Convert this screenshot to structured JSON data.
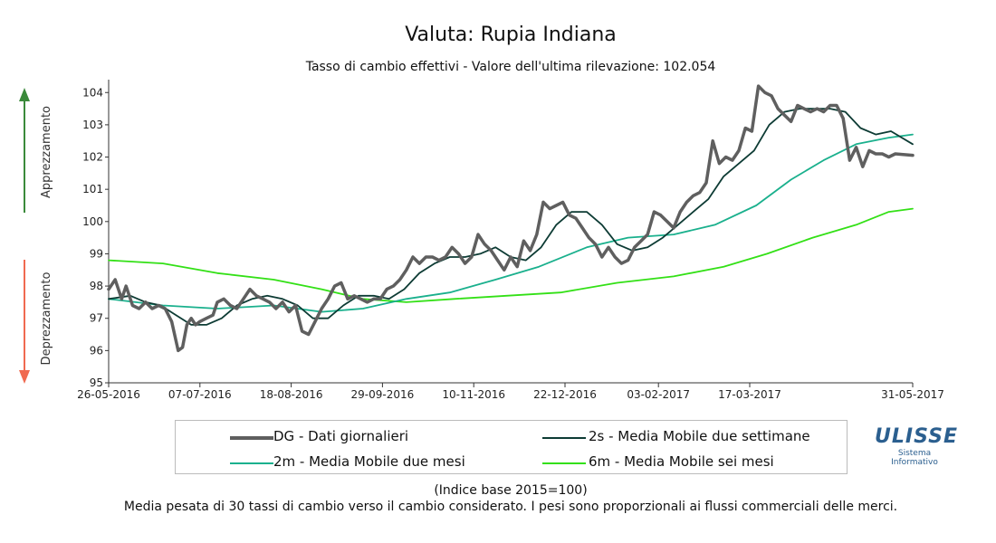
{
  "chart_data": {
    "type": "line",
    "title": "Valuta: Rupia Indiana",
    "subtitle_prefix": "Tasso di cambio effettivi - Valore dell'ultima rilevazione:",
    "last_value": "102.054",
    "ylim": [
      95,
      104.4
    ],
    "yticks": [
      "95",
      "96",
      "97",
      "98",
      "99",
      "100",
      "101",
      "102",
      "103",
      "104"
    ],
    "x_range": [
      "2016-05-26",
      "2017-05-31"
    ],
    "xticks": [
      {
        "date": "2016-05-26",
        "label": "26-05-2016"
      },
      {
        "date": "2016-07-07",
        "label": "07-07-2016"
      },
      {
        "date": "2016-08-18",
        "label": "18-08-2016"
      },
      {
        "date": "2016-09-29",
        "label": "29-09-2016"
      },
      {
        "date": "2016-11-10",
        "label": "10-11-2016"
      },
      {
        "date": "2016-12-22",
        "label": "22-12-2016"
      },
      {
        "date": "2017-02-03",
        "label": "03-02-2017"
      },
      {
        "date": "2017-03-17",
        "label": "17-03-2017"
      },
      {
        "date": "2017-05-31",
        "label": "31-05-2017"
      }
    ],
    "left_axis_up": "Apprezzamento",
    "left_axis_down": "Deprezzamento",
    "series": [
      {
        "name": "DG - Dati giornalieri",
        "color": "#5f5f5f",
        "width": 3.5,
        "points": [
          [
            "2016-05-26",
            97.9
          ],
          [
            "2016-05-29",
            98.2
          ],
          [
            "2016-06-01",
            97.6
          ],
          [
            "2016-06-03",
            98.0
          ],
          [
            "2016-06-06",
            97.4
          ],
          [
            "2016-06-09",
            97.3
          ],
          [
            "2016-06-12",
            97.5
          ],
          [
            "2016-06-15",
            97.3
          ],
          [
            "2016-06-18",
            97.4
          ],
          [
            "2016-06-21",
            97.3
          ],
          [
            "2016-06-24",
            96.9
          ],
          [
            "2016-06-27",
            96.0
          ],
          [
            "2016-06-29",
            96.1
          ],
          [
            "2016-07-01",
            96.8
          ],
          [
            "2016-07-03",
            97.0
          ],
          [
            "2016-07-05",
            96.8
          ],
          [
            "2016-07-07",
            96.9
          ],
          [
            "2016-07-10",
            97.0
          ],
          [
            "2016-07-13",
            97.1
          ],
          [
            "2016-07-15",
            97.5
          ],
          [
            "2016-07-18",
            97.6
          ],
          [
            "2016-07-21",
            97.4
          ],
          [
            "2016-07-24",
            97.3
          ],
          [
            "2016-07-27",
            97.6
          ],
          [
            "2016-07-30",
            97.9
          ],
          [
            "2016-08-02",
            97.7
          ],
          [
            "2016-08-05",
            97.6
          ],
          [
            "2016-08-08",
            97.5
          ],
          [
            "2016-08-11",
            97.3
          ],
          [
            "2016-08-14",
            97.5
          ],
          [
            "2016-08-17",
            97.2
          ],
          [
            "2016-08-20",
            97.4
          ],
          [
            "2016-08-23",
            96.6
          ],
          [
            "2016-08-26",
            96.5
          ],
          [
            "2016-08-29",
            96.9
          ],
          [
            "2016-09-01",
            97.3
          ],
          [
            "2016-09-04",
            97.6
          ],
          [
            "2016-09-07",
            98.0
          ],
          [
            "2016-09-10",
            98.1
          ],
          [
            "2016-09-13",
            97.6
          ],
          [
            "2016-09-16",
            97.7
          ],
          [
            "2016-09-19",
            97.6
          ],
          [
            "2016-09-22",
            97.5
          ],
          [
            "2016-09-25",
            97.6
          ],
          [
            "2016-09-28",
            97.6
          ],
          [
            "2016-10-01",
            97.9
          ],
          [
            "2016-10-04",
            98.0
          ],
          [
            "2016-10-07",
            98.2
          ],
          [
            "2016-10-10",
            98.5
          ],
          [
            "2016-10-13",
            98.9
          ],
          [
            "2016-10-16",
            98.7
          ],
          [
            "2016-10-19",
            98.9
          ],
          [
            "2016-10-22",
            98.9
          ],
          [
            "2016-10-25",
            98.8
          ],
          [
            "2016-10-28",
            98.9
          ],
          [
            "2016-10-31",
            99.2
          ],
          [
            "2016-11-03",
            99.0
          ],
          [
            "2016-11-06",
            98.7
          ],
          [
            "2016-11-09",
            98.9
          ],
          [
            "2016-11-12",
            99.6
          ],
          [
            "2016-11-15",
            99.3
          ],
          [
            "2016-11-18",
            99.1
          ],
          [
            "2016-11-21",
            98.8
          ],
          [
            "2016-11-24",
            98.5
          ],
          [
            "2016-11-27",
            98.9
          ],
          [
            "2016-11-30",
            98.6
          ],
          [
            "2016-12-03",
            99.4
          ],
          [
            "2016-12-06",
            99.1
          ],
          [
            "2016-12-09",
            99.6
          ],
          [
            "2016-12-12",
            100.6
          ],
          [
            "2016-12-15",
            100.4
          ],
          [
            "2016-12-18",
            100.5
          ],
          [
            "2016-12-21",
            100.6
          ],
          [
            "2016-12-24",
            100.2
          ],
          [
            "2016-12-27",
            100.1
          ],
          [
            "2016-12-30",
            99.8
          ],
          [
            "2017-01-02",
            99.5
          ],
          [
            "2017-01-05",
            99.3
          ],
          [
            "2017-01-08",
            98.9
          ],
          [
            "2017-01-11",
            99.2
          ],
          [
            "2017-01-14",
            98.9
          ],
          [
            "2017-01-17",
            98.7
          ],
          [
            "2017-01-20",
            98.8
          ],
          [
            "2017-01-23",
            99.2
          ],
          [
            "2017-01-26",
            99.4
          ],
          [
            "2017-01-29",
            99.6
          ],
          [
            "2017-02-01",
            100.3
          ],
          [
            "2017-02-04",
            100.2
          ],
          [
            "2017-02-07",
            100.0
          ],
          [
            "2017-02-10",
            99.8
          ],
          [
            "2017-02-13",
            100.3
          ],
          [
            "2017-02-16",
            100.6
          ],
          [
            "2017-02-19",
            100.8
          ],
          [
            "2017-02-22",
            100.9
          ],
          [
            "2017-02-25",
            101.2
          ],
          [
            "2017-02-28",
            102.5
          ],
          [
            "2017-03-03",
            101.8
          ],
          [
            "2017-03-06",
            102.0
          ],
          [
            "2017-03-09",
            101.9
          ],
          [
            "2017-03-12",
            102.2
          ],
          [
            "2017-03-15",
            102.9
          ],
          [
            "2017-03-18",
            102.8
          ],
          [
            "2017-03-21",
            104.2
          ],
          [
            "2017-03-24",
            104.0
          ],
          [
            "2017-03-27",
            103.9
          ],
          [
            "2017-03-30",
            103.5
          ],
          [
            "2017-04-02",
            103.3
          ],
          [
            "2017-04-05",
            103.1
          ],
          [
            "2017-04-08",
            103.6
          ],
          [
            "2017-04-11",
            103.5
          ],
          [
            "2017-04-14",
            103.4
          ],
          [
            "2017-04-17",
            103.5
          ],
          [
            "2017-04-20",
            103.4
          ],
          [
            "2017-04-23",
            103.6
          ],
          [
            "2017-04-26",
            103.6
          ],
          [
            "2017-04-29",
            103.2
          ],
          [
            "2017-05-02",
            101.9
          ],
          [
            "2017-05-05",
            102.3
          ],
          [
            "2017-05-08",
            101.7
          ],
          [
            "2017-05-11",
            102.2
          ],
          [
            "2017-05-14",
            102.1
          ],
          [
            "2017-05-17",
            102.1
          ],
          [
            "2017-05-20",
            102.0
          ],
          [
            "2017-05-23",
            102.1
          ],
          [
            "2017-05-31",
            102.054
          ]
        ]
      },
      {
        "name": "2s - Media Mobile due settimane",
        "color": "#0d3b34",
        "width": 1.8,
        "points": [
          [
            "2016-05-26",
            97.6
          ],
          [
            "2016-06-05",
            97.7
          ],
          [
            "2016-06-12",
            97.5
          ],
          [
            "2016-06-19",
            97.4
          ],
          [
            "2016-06-26",
            97.1
          ],
          [
            "2016-07-03",
            96.8
          ],
          [
            "2016-07-10",
            96.8
          ],
          [
            "2016-07-17",
            97.0
          ],
          [
            "2016-07-24",
            97.4
          ],
          [
            "2016-07-31",
            97.6
          ],
          [
            "2016-08-07",
            97.7
          ],
          [
            "2016-08-14",
            97.6
          ],
          [
            "2016-08-21",
            97.4
          ],
          [
            "2016-08-28",
            97.0
          ],
          [
            "2016-09-04",
            97.0
          ],
          [
            "2016-09-11",
            97.4
          ],
          [
            "2016-09-18",
            97.7
          ],
          [
            "2016-09-25",
            97.7
          ],
          [
            "2016-10-02",
            97.6
          ],
          [
            "2016-10-09",
            97.9
          ],
          [
            "2016-10-16",
            98.4
          ],
          [
            "2016-10-23",
            98.7
          ],
          [
            "2016-10-30",
            98.9
          ],
          [
            "2016-11-06",
            98.9
          ],
          [
            "2016-11-13",
            99.0
          ],
          [
            "2016-11-20",
            99.2
          ],
          [
            "2016-11-27",
            98.9
          ],
          [
            "2016-12-04",
            98.8
          ],
          [
            "2016-12-11",
            99.2
          ],
          [
            "2016-12-18",
            99.9
          ],
          [
            "2016-12-25",
            100.3
          ],
          [
            "2017-01-01",
            100.3
          ],
          [
            "2017-01-08",
            99.9
          ],
          [
            "2017-01-15",
            99.3
          ],
          [
            "2017-01-22",
            99.1
          ],
          [
            "2017-01-29",
            99.2
          ],
          [
            "2017-02-05",
            99.5
          ],
          [
            "2017-02-12",
            99.9
          ],
          [
            "2017-02-19",
            100.3
          ],
          [
            "2017-02-26",
            100.7
          ],
          [
            "2017-03-05",
            101.4
          ],
          [
            "2017-03-12",
            101.8
          ],
          [
            "2017-03-19",
            102.2
          ],
          [
            "2017-03-26",
            103.0
          ],
          [
            "2017-04-02",
            103.4
          ],
          [
            "2017-04-09",
            103.5
          ],
          [
            "2017-04-16",
            103.5
          ],
          [
            "2017-04-23",
            103.5
          ],
          [
            "2017-04-30",
            103.4
          ],
          [
            "2017-05-07",
            102.9
          ],
          [
            "2017-05-14",
            102.7
          ],
          [
            "2017-05-21",
            102.8
          ],
          [
            "2017-05-31",
            102.4
          ]
        ]
      },
      {
        "name": "2m - Media Mobile due mesi",
        "color": "#1ab08d",
        "width": 1.8,
        "points": [
          [
            "2016-05-26",
            97.6
          ],
          [
            "2016-06-20",
            97.4
          ],
          [
            "2016-07-15",
            97.3
          ],
          [
            "2016-08-10",
            97.4
          ],
          [
            "2016-09-01",
            97.2
          ],
          [
            "2016-09-20",
            97.3
          ],
          [
            "2016-10-10",
            97.6
          ],
          [
            "2016-10-30",
            97.8
          ],
          [
            "2016-11-20",
            98.2
          ],
          [
            "2016-12-10",
            98.6
          ],
          [
            "2017-01-01",
            99.2
          ],
          [
            "2017-01-20",
            99.5
          ],
          [
            "2017-02-10",
            99.6
          ],
          [
            "2017-03-01",
            99.9
          ],
          [
            "2017-03-20",
            100.5
          ],
          [
            "2017-04-05",
            101.3
          ],
          [
            "2017-04-20",
            101.9
          ],
          [
            "2017-05-05",
            102.4
          ],
          [
            "2017-05-20",
            102.6
          ],
          [
            "2017-05-31",
            102.7
          ]
        ]
      },
      {
        "name": "6m - Media Mobile sei mesi",
        "color": "#33e016",
        "width": 1.8,
        "points": [
          [
            "2016-05-26",
            98.8
          ],
          [
            "2016-06-20",
            98.7
          ],
          [
            "2016-07-15",
            98.4
          ],
          [
            "2016-08-10",
            98.2
          ],
          [
            "2016-09-01",
            97.9
          ],
          [
            "2016-09-20",
            97.6
          ],
          [
            "2016-10-10",
            97.5
          ],
          [
            "2016-11-01",
            97.6
          ],
          [
            "2016-11-25",
            97.7
          ],
          [
            "2016-12-20",
            97.8
          ],
          [
            "2017-01-15",
            98.1
          ],
          [
            "2017-02-10",
            98.3
          ],
          [
            "2017-03-05",
            98.6
          ],
          [
            "2017-03-25",
            99.0
          ],
          [
            "2017-04-15",
            99.5
          ],
          [
            "2017-05-05",
            99.9
          ],
          [
            "2017-05-20",
            100.3
          ],
          [
            "2017-05-31",
            100.4
          ]
        ]
      }
    ]
  },
  "legend": {
    "dg": "DG - Dati giornalieri",
    "s2": "2s - Media Mobile due settimane",
    "m2": "2m - Media Mobile due mesi",
    "m6": "6m - Media Mobile sei mesi"
  },
  "footer": {
    "line1": "(Indice base 2015=100)",
    "line2": "Media pesata di 30 tassi di cambio verso il cambio considerato. I pesi sono proporzionali ai flussi commerciali delle merci."
  },
  "logo": {
    "main": "ULISSE",
    "line1": "Sistema",
    "line2": "Informativo"
  },
  "colors": {
    "up_arrow": "#3b8a3b",
    "down_arrow": "#f06a50"
  }
}
